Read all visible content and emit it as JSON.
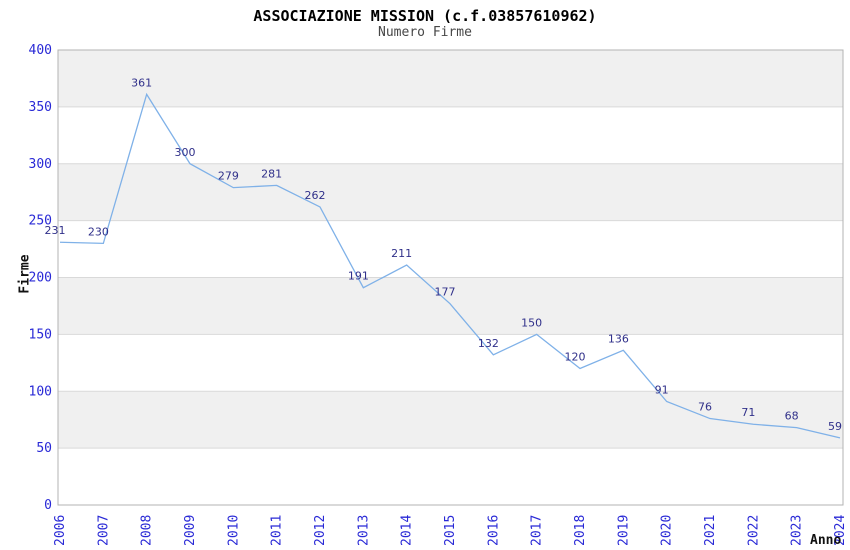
{
  "chart_data": {
    "type": "line",
    "title": "ASSOCIAZIONE MISSION (c.f.03857610962)",
    "subtitle": "Numero Firme",
    "xlabel": "Anno",
    "ylabel": "Firme",
    "categories": [
      "2006",
      "2007",
      "2008",
      "2009",
      "2010",
      "2011",
      "2012",
      "2013",
      "2014",
      "2015",
      "2016",
      "2017",
      "2018",
      "2019",
      "2020",
      "2021",
      "2022",
      "2023",
      "2024"
    ],
    "values": [
      231,
      230,
      361,
      300,
      279,
      281,
      262,
      191,
      211,
      177,
      132,
      150,
      120,
      136,
      91,
      76,
      71,
      68,
      59
    ],
    "ylim": [
      0,
      400
    ],
    "ytick_step": 50,
    "grid": true,
    "legend": "none",
    "background_bands": "alternating gray/white horizontal bands every 50 units",
    "x_tick_rotation": -90,
    "colors": {
      "line": "#7fb1e8",
      "data_label": "#30308a",
      "tick_label": "#2929d6",
      "band": "#f0f0f0",
      "grid_line": "#d9d9d9",
      "axis_border": "#b3b3b3",
      "title": "#000000",
      "subtitle": "#474747"
    }
  }
}
